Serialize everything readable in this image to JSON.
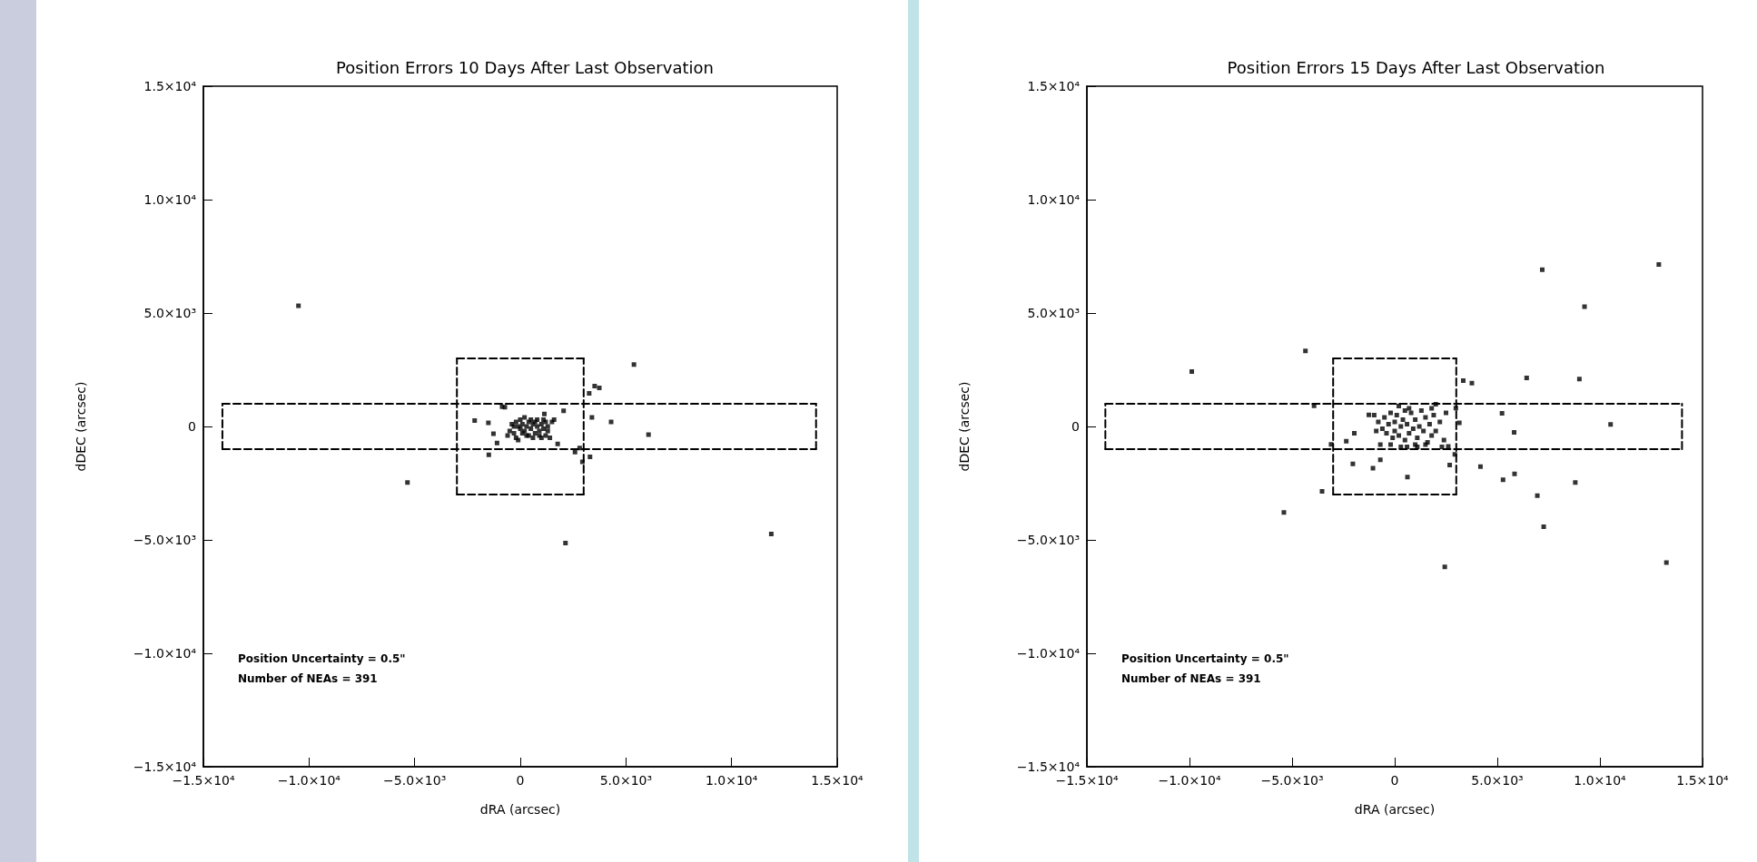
{
  "chart_data": [
    {
      "type": "scatter",
      "title": "Position Errors 10 Days After Last Observation",
      "xlabel": "dRA (arcsec)",
      "ylabel": "dDEC (arcsec)",
      "annotations": [
        "Position Uncertainty = 0.5\"",
        "Number of NEAs = 391"
      ],
      "xlim": [
        -15000,
        15000
      ],
      "ylim": [
        -15000,
        15000
      ],
      "xticks": [
        {
          "value": -15000,
          "label": "−1.5×10⁴"
        },
        {
          "value": -10000,
          "label": "−1.0×10⁴"
        },
        {
          "value": -5000,
          "label": "−5.0×10³"
        },
        0,
        {
          "value": 5000,
          "label": "5.0×10³"
        },
        {
          "value": 10000,
          "label": "1.0×10⁴"
        },
        {
          "value": 15000,
          "label": "1.5×10⁴"
        }
      ],
      "yticks": [
        {
          "value": -15000,
          "label": "−1.5×10⁴"
        },
        {
          "value": -10000,
          "label": "−1.0×10⁴"
        },
        {
          "value": -5000,
          "label": "−5.0×10³"
        },
        0,
        {
          "value": 5000,
          "label": "5.0×10³"
        },
        {
          "value": 10000,
          "label": "1.0×10⁴"
        },
        {
          "value": 15000,
          "label": "1.5×10⁴"
        }
      ],
      "series": [
        {
          "color": "#000000",
          "marker": "square",
          "x": [
            -10500,
            -5340,
            2140,
            11880,
            5380,
            4300,
            6070,
            3520,
            3740,
            3260,
            3390,
            2050,
            -860,
            -730,
            -2160,
            -1510,
            -1270,
            -1100,
            -1490,
            2590,
            2810,
            2940,
            3300,
            1770,
            1140,
            -500,
            -400,
            -300,
            -200,
            -100,
            0,
            100,
            200,
            300,
            400,
            500,
            600,
            700,
            800,
            900,
            1000,
            1100,
            1200,
            1300,
            1400,
            1500,
            1600,
            -600,
            -200,
            0,
            200,
            400,
            600,
            800,
            1000,
            -300,
            100,
            300,
            500,
            700,
            900,
            1100,
            1300,
            -100,
            1200
          ],
          "values": [
            5320,
            -2470,
            -5140,
            -4740,
            2730,
            200,
            -360,
            1780,
            1700,
            1460,
            400,
            690,
            870,
            850,
            260,
            160,
            -320,
            -730,
            -1250,
            -1130,
            -950,
            -1560,
            -1340,
            -770,
            550,
            -200,
            100,
            -300,
            200,
            0,
            -100,
            100,
            -200,
            0,
            200,
            -100,
            100,
            -300,
            0,
            -200,
            100,
            -100,
            -400,
            0,
            -500,
            200,
            300,
            -400,
            -500,
            300,
            400,
            -400,
            -500,
            300,
            -500,
            0,
            -300,
            -400,
            300,
            200,
            -400,
            300,
            -200,
            -600,
            200
          ]
        },
        {
          "type": "line",
          "color": "#000000",
          "marker": "none",
          "line_style": "dashed",
          "x": [
            -3000,
            3000
          ],
          "values": [
            -3000,
            -3000
          ]
        },
        {
          "type": "line",
          "color": "#000000",
          "marker": "none",
          "line_style": "dashed",
          "x": [
            -3000,
            3000
          ],
          "values": [
            3000,
            3000
          ]
        },
        {
          "type": "line",
          "color": "#000000",
          "marker": "none",
          "line_style": "dashed",
          "x": [
            -3000,
            -3000
          ],
          "values": [
            -3000,
            3000
          ]
        },
        {
          "type": "line",
          "color": "#000000",
          "marker": "none",
          "line_style": "dashed",
          "x": [
            3000,
            3000
          ],
          "values": [
            -3000,
            3000
          ]
        },
        {
          "type": "line",
          "color": "#000000",
          "marker": "none",
          "line_style": "dashed",
          "x": [
            -14100,
            14000
          ],
          "values": [
            -1000,
            -1000
          ]
        },
        {
          "type": "line",
          "color": "#000000",
          "marker": "none",
          "line_style": "dashed",
          "x": [
            -14100,
            14000
          ],
          "values": [
            1000,
            1000
          ]
        },
        {
          "type": "line",
          "color": "#000000",
          "marker": "none",
          "line_style": "dashed",
          "x": [
            -14100,
            -14100
          ],
          "values": [
            -1000,
            1000
          ]
        },
        {
          "type": "line",
          "color": "#000000",
          "marker": "none",
          "line_style": "dashed",
          "x": [
            14000,
            14000
          ],
          "values": [
            -1000,
            1000
          ]
        }
      ]
    },
    {
      "type": "scatter",
      "title": "Position Errors 15 Days After Last Observation",
      "xlabel": "dRA (arcsec)",
      "ylabel": "dDEC (arcsec)",
      "annotations": [
        "Position Uncertainty = 0.5\"",
        "Number of NEAs = 391"
      ],
      "xlim": [
        -15000,
        15000
      ],
      "ylim": [
        -15000,
        15000
      ],
      "xticks": [
        {
          "value": -15000,
          "label": "−1.5×10⁴"
        },
        {
          "value": -10000,
          "label": "−1.0×10⁴"
        },
        {
          "value": -5000,
          "label": "−5.0×10³"
        },
        0,
        {
          "value": 5000,
          "label": "5.0×10³"
        },
        {
          "value": 10000,
          "label": "1.0×10⁴"
        },
        {
          "value": 15000,
          "label": "1.5×10⁴"
        }
      ],
      "yticks": [
        {
          "value": -15000,
          "label": "−1.5×10⁴"
        },
        {
          "value": -10000,
          "label": "−1.0×10⁴"
        },
        {
          "value": -5000,
          "label": "−5.0×10³"
        },
        0,
        {
          "value": 5000,
          "label": "5.0×10³"
        },
        {
          "value": 10000,
          "label": "1.0×10⁴"
        },
        {
          "value": 15000,
          "label": "1.5×10⁴"
        }
      ],
      "series": [
        {
          "color": "#000000",
          "marker": "square",
          "x": [
            -9890,
            -4350,
            -3930,
            -5400,
            -3540,
            7190,
            12870,
            9250,
            6430,
            9000,
            5230,
            5820,
            10520,
            5280,
            5840,
            6950,
            7260,
            8800,
            13240,
            2440,
            3340,
            3760,
            4180,
            620,
            -1060,
            -2040,
            -700,
            -3100,
            -2360,
            -1970,
            -1260,
            2680,
            2930,
            2610,
            2000,
            2980,
            3150,
            -1000,
            -800,
            -600,
            -500,
            -400,
            -300,
            -200,
            -100,
            0,
            0,
            100,
            200,
            300,
            400,
            500,
            600,
            700,
            800,
            900,
            1000,
            1100,
            1200,
            1300,
            1400,
            1500,
            1600,
            1700,
            1800,
            1900,
            2000,
            2200,
            2400,
            2500,
            -700,
            300,
            700,
            1100,
            1500,
            -200,
            500,
            1000,
            1800,
            2300,
            200,
            -900,
            600
          ],
          "values": [
            2420,
            3330,
            910,
            -3790,
            -2860,
            6910,
            7140,
            5280,
            2140,
            2090,
            580,
            -260,
            90,
            -2350,
            -2090,
            -3050,
            -4420,
            -2470,
            -6000,
            -6190,
            2020,
            1910,
            -1770,
            -2230,
            -1840,
            -1650,
            -1470,
            -790,
            -650,
            -300,
            510,
            -1700,
            -1230,
            -880,
            980,
            810,
            160,
            500,
            200,
            -100,
            400,
            -300,
            100,
            600,
            -500,
            200,
            -200,
            500,
            -400,
            0,
            300,
            -600,
            100,
            -300,
            600,
            -100,
            300,
            -500,
            0,
            700,
            -200,
            400,
            -700,
            100,
            -400,
            500,
            -200,
            200,
            -600,
            600,
            -800,
            -900,
            800,
            -900,
            -800,
            -800,
            700,
            -800,
            800,
            -900,
            900,
            -200,
            -900
          ]
        },
        {
          "type": "line",
          "color": "#000000",
          "marker": "none",
          "line_style": "dashed",
          "x": [
            -3000,
            3000
          ],
          "values": [
            -3000,
            -3000
          ]
        },
        {
          "type": "line",
          "color": "#000000",
          "marker": "none",
          "line_style": "dashed",
          "x": [
            -3000,
            3000
          ],
          "values": [
            3000,
            3000
          ]
        },
        {
          "type": "line",
          "color": "#000000",
          "marker": "none",
          "line_style": "dashed",
          "x": [
            -3000,
            -3000
          ],
          "values": [
            -3000,
            3000
          ]
        },
        {
          "type": "line",
          "color": "#000000",
          "marker": "none",
          "line_style": "dashed",
          "x": [
            3000,
            3000
          ],
          "values": [
            -3000,
            3000
          ]
        },
        {
          "type": "line",
          "color": "#000000",
          "marker": "none",
          "line_style": "dashed",
          "x": [
            -14100,
            14000
          ],
          "values": [
            -1000,
            -1000
          ]
        },
        {
          "type": "line",
          "color": "#000000",
          "marker": "none",
          "line_style": "dashed",
          "x": [
            -14100,
            14000
          ],
          "values": [
            1000,
            1000
          ]
        },
        {
          "type": "line",
          "color": "#000000",
          "marker": "none",
          "line_style": "dashed",
          "x": [
            -14100,
            -14100
          ],
          "values": [
            -1000,
            1000
          ]
        },
        {
          "type": "line",
          "color": "#000000",
          "marker": "none",
          "line_style": "dashed",
          "x": [
            14000,
            14000
          ],
          "values": [
            -1000,
            1000
          ]
        }
      ]
    }
  ]
}
